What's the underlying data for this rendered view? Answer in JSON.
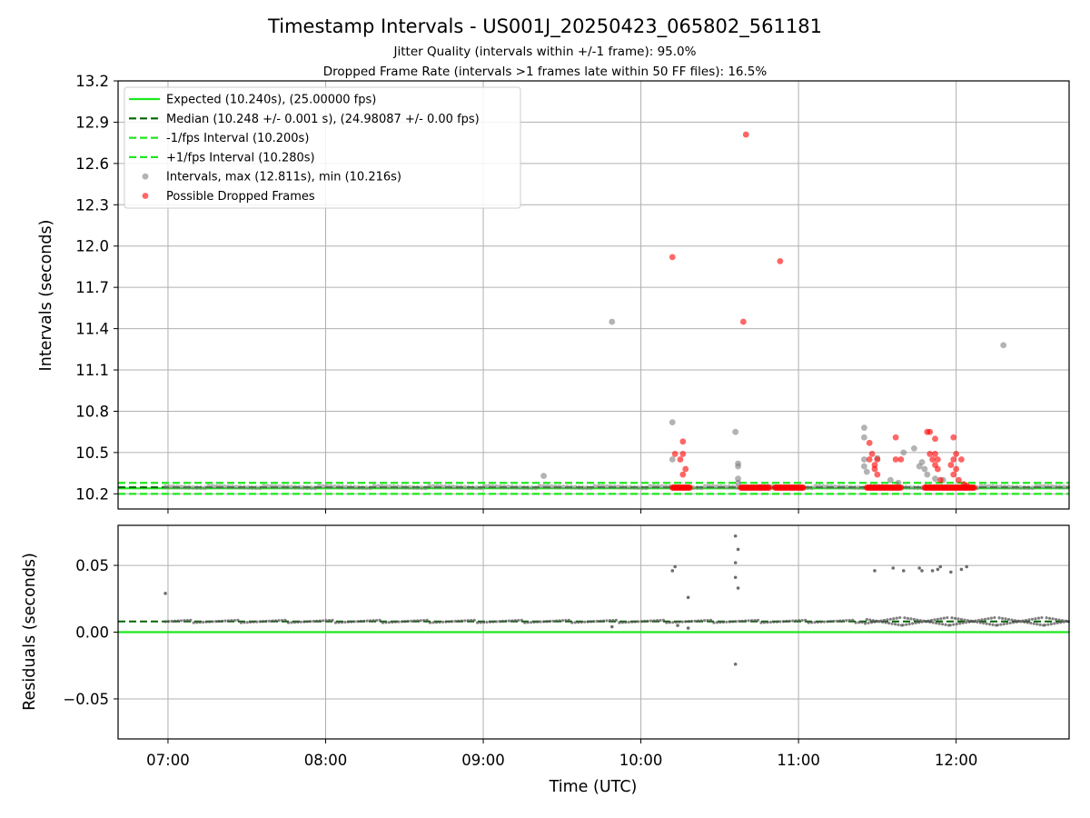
{
  "header": {
    "title": "Timestamp Intervals - US001J_20250423_065802_561181",
    "subtitle1": "Jitter Quality (intervals within +/-1 frame): 95.0%",
    "subtitle2": "Dropped Frame Rate (intervals >1 frames late within 50 FF files): 16.5%"
  },
  "colors": {
    "expected": "#1ee81e",
    "median": "#006400",
    "bound": "#1ee81e",
    "interval": "#808080",
    "dropped": "#ff0000",
    "residual": "#555555",
    "grid": "#b0b0b0"
  },
  "chart_data": [
    {
      "type": "scatter",
      "panel": "top",
      "xlabel": "",
      "ylabel": "Intervals (seconds)",
      "xlim": [
        "06:41",
        "12:43"
      ],
      "ylim": [
        10.09,
        13.2
      ],
      "yticks": [
        "10.2",
        "10.5",
        "10.8",
        "11.1",
        "11.4",
        "11.7",
        "12.0",
        "12.3",
        "12.6",
        "12.9",
        "13.2"
      ],
      "grid": true,
      "legend_position": "upper-left",
      "legend": [
        {
          "label": "Expected (10.240s), (25.00000 fps)",
          "style": "solid-line",
          "color": "#1ee81e"
        },
        {
          "label": "Median (10.248 +/- 0.001 s), (24.98087 +/- 0.00 fps)",
          "style": "dashed-line",
          "color": "#006400"
        },
        {
          "label": "-1/fps Interval (10.200s)",
          "style": "dashed-line",
          "color": "#1ee81e"
        },
        {
          "label": "+1/fps Interval (10.280s)",
          "style": "dashed-line",
          "color": "#1ee81e"
        },
        {
          "label": "Intervals, max (12.811s), min (10.216s)",
          "style": "marker",
          "color": "#808080"
        },
        {
          "label": "Possible Dropped Frames",
          "style": "marker",
          "color": "#ff0000"
        }
      ],
      "reference_lines": {
        "expected": 10.24,
        "median": 10.248,
        "lower": 10.2,
        "upper": 10.28
      },
      "series": [
        {
          "name": "Intervals, max (12.811s), min (10.216s)",
          "points": [
            [
              "09:23",
              10.33
            ],
            [
              "09:49",
              11.45
            ],
            [
              "10:12",
              10.72
            ],
            [
              "10:12",
              10.45
            ],
            [
              "10:36",
              10.65
            ],
            [
              "10:37",
              10.42
            ],
            [
              "10:37",
              10.4
            ],
            [
              "10:37",
              10.31
            ],
            [
              "10:37",
              10.28
            ],
            [
              "11:25",
              10.68
            ],
            [
              "11:25",
              10.61
            ],
            [
              "11:25",
              10.45
            ],
            [
              "11:25",
              10.4
            ],
            [
              "11:26",
              10.36
            ],
            [
              "11:30",
              10.46
            ],
            [
              "11:35",
              10.3
            ],
            [
              "11:38",
              10.28
            ],
            [
              "11:40",
              10.5
            ],
            [
              "11:44",
              10.53
            ],
            [
              "11:46",
              10.4
            ],
            [
              "11:47",
              10.43
            ],
            [
              "11:48",
              10.38
            ],
            [
              "11:49",
              10.34
            ],
            [
              "11:52",
              10.31
            ],
            [
              "11:55",
              10.3
            ],
            [
              "12:18",
              11.28
            ]
          ]
        },
        {
          "name": "Possible Dropped Frames",
          "points": [
            [
              "10:12",
              11.92
            ],
            [
              "10:13",
              10.49
            ],
            [
              "10:15",
              10.45
            ],
            [
              "10:16",
              10.49
            ],
            [
              "10:16",
              10.58
            ],
            [
              "10:16",
              10.34
            ],
            [
              "10:17",
              10.38
            ],
            [
              "10:40",
              12.81
            ],
            [
              "10:39",
              11.45
            ],
            [
              "10:53",
              11.89
            ],
            [
              "11:27",
              10.57
            ],
            [
              "11:27",
              10.45
            ],
            [
              "11:28",
              10.49
            ],
            [
              "11:29",
              10.41
            ],
            [
              "11:29",
              10.38
            ],
            [
              "11:30",
              10.45
            ],
            [
              "11:30",
              10.34
            ],
            [
              "11:37",
              10.61
            ],
            [
              "11:37",
              10.45
            ],
            [
              "11:39",
              10.45
            ],
            [
              "11:49",
              10.65
            ],
            [
              "11:50",
              10.65
            ],
            [
              "11:50",
              10.49
            ],
            [
              "11:51",
              10.45
            ],
            [
              "11:52",
              10.49
            ],
            [
              "11:52",
              10.6
            ],
            [
              "11:52",
              10.41
            ],
            [
              "11:53",
              10.45
            ],
            [
              "11:53",
              10.38
            ],
            [
              "11:54",
              10.3
            ],
            [
              "11:58",
              10.41
            ],
            [
              "11:59",
              10.45
            ],
            [
              "11:59",
              10.61
            ],
            [
              "12:00",
              10.49
            ],
            [
              "11:59",
              10.34
            ],
            [
              "12:00",
              10.38
            ],
            [
              "12:01",
              10.3
            ],
            [
              "12:02",
              10.45
            ],
            [
              "12:03",
              10.27
            ],
            [
              "12:04",
              10.26
            ]
          ],
          "clusters": [
            {
              "start": "10:12",
              "end": "10:19",
              "y": 10.245
            },
            {
              "start": "10:38",
              "end": "10:49",
              "y": 10.245
            },
            {
              "start": "10:51",
              "end": "11:02",
              "y": 10.245
            },
            {
              "start": "11:26",
              "end": "11:39",
              "y": 10.245
            },
            {
              "start": "11:48",
              "end": "12:07",
              "y": 10.245
            }
          ]
        }
      ]
    },
    {
      "type": "scatter",
      "panel": "bottom",
      "xlabel": "Time (UTC)",
      "ylabel": "Residuals (seconds)",
      "xlim": [
        "06:41",
        "12:43"
      ],
      "ylim": [
        -0.08,
        0.08
      ],
      "yticks": [
        "−0.05",
        "0.00",
        "0.05"
      ],
      "xticks": [
        "07:00",
        "08:00",
        "09:00",
        "10:00",
        "11:00",
        "12:00"
      ],
      "grid": true,
      "reference_lines": {
        "expected": 0.0,
        "median": 0.008
      },
      "series": [
        {
          "name": "Residuals",
          "baseline": 0.008,
          "points": [
            [
              "06:59",
              0.029
            ],
            [
              "10:12",
              0.046
            ],
            [
              "10:13",
              0.049
            ],
            [
              "10:18",
              0.026
            ],
            [
              "10:36",
              0.072
            ],
            [
              "10:37",
              0.062
            ],
            [
              "10:36",
              0.052
            ],
            [
              "10:36",
              0.041
            ],
            [
              "10:37",
              0.033
            ],
            [
              "10:36",
              -0.024
            ],
            [
              "10:18",
              0.003
            ],
            [
              "10:14",
              0.005
            ],
            [
              "09:49",
              0.004
            ],
            [
              "11:29",
              0.046
            ],
            [
              "11:36",
              0.048
            ],
            [
              "11:40",
              0.046
            ],
            [
              "11:46",
              0.048
            ],
            [
              "11:47",
              0.046
            ],
            [
              "11:51",
              0.046
            ],
            [
              "11:53",
              0.047
            ],
            [
              "11:54",
              0.049
            ],
            [
              "11:58",
              0.045
            ],
            [
              "12:02",
              0.047
            ],
            [
              "12:04",
              0.049
            ]
          ]
        }
      ]
    }
  ]
}
